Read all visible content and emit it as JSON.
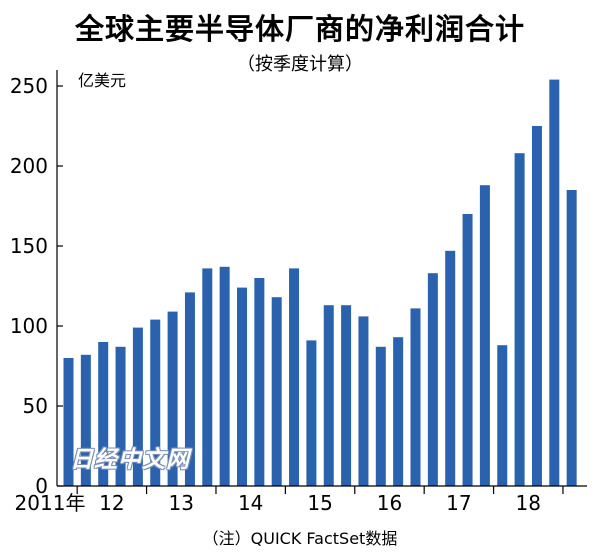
{
  "watermark": "日经中文网",
  "chart_data": {
    "type": "bar",
    "title": "全球主要半导体厂商的净利润合计",
    "subtitle": "（按季度计算）",
    "unit": "亿美元",
    "note": "（注）QUICK FactSet数据",
    "ylim": [
      0,
      260
    ],
    "yticks": [
      0,
      50,
      100,
      150,
      200,
      250
    ],
    "grid": false,
    "bar_color": "#2b62ad",
    "year_labels": [
      {
        "label": "2011年",
        "start": 0,
        "end": 1
      },
      {
        "label": "12",
        "start": 1,
        "end": 5
      },
      {
        "label": "13",
        "start": 5,
        "end": 9
      },
      {
        "label": "14",
        "start": 9,
        "end": 13
      },
      {
        "label": "15",
        "start": 13,
        "end": 17
      },
      {
        "label": "16",
        "start": 17,
        "end": 21
      },
      {
        "label": "17",
        "start": 21,
        "end": 25
      },
      {
        "label": "18",
        "start": 25,
        "end": 29
      }
    ],
    "values": [
      80,
      82,
      90,
      87,
      99,
      104,
      109,
      121,
      136,
      137,
      124,
      130,
      118,
      136,
      91,
      113,
      113,
      106,
      87,
      93,
      111,
      133,
      147,
      170,
      188,
      88,
      208,
      225,
      254,
      185
    ]
  }
}
